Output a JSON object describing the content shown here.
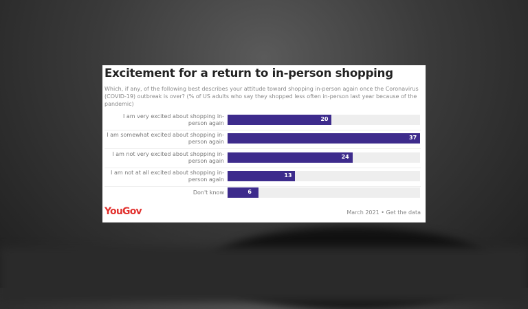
{
  "colors": {
    "bar": "#3d2b8c",
    "logo": "#e2322f"
  },
  "chart_data": {
    "type": "bar",
    "orientation": "horizontal",
    "title": "Excitement for a return to in-person shopping",
    "subtitle": "Which, if any, of the following best describes your attitude toward shopping in-person again once the Coronavirus (COVID-19) outbreak is over? (% of US adults who say they shopped less often in-person last year because of the pandemic)",
    "categories": [
      "I am very excited about shopping in-person again",
      "I am somewhat excited about shopping in-person again",
      "I am not very excited about shopping in-person again",
      "I am not at all excited about shopping in-person again",
      "Don't know"
    ],
    "values": [
      20,
      37,
      24,
      13,
      6
    ],
    "xlim": [
      0,
      37
    ],
    "grid": false
  },
  "footer": {
    "logo": "YouGov",
    "source": "March 2021 • Get the data"
  }
}
